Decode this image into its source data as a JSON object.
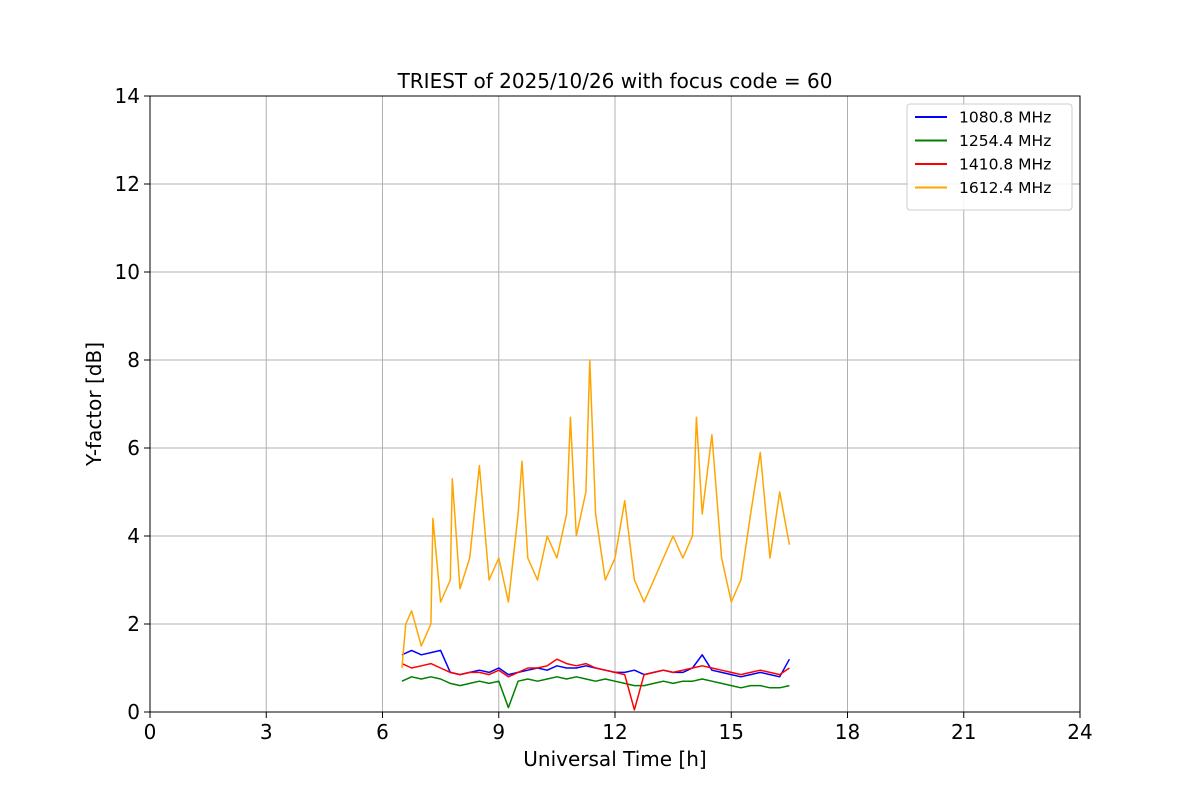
{
  "chart_data": {
    "type": "line",
    "title": "TRIEST of 2025/10/26 with focus code = 60",
    "xlabel": "Universal Time [h]",
    "ylabel": "Y-factor [dB]",
    "xlim": [
      0,
      24
    ],
    "ylim": [
      0,
      14
    ],
    "xticks": [
      0,
      3,
      6,
      9,
      12,
      15,
      18,
      21,
      24
    ],
    "yticks": [
      0,
      2,
      4,
      6,
      8,
      10,
      12,
      14
    ],
    "grid": true,
    "legend_position": "top-right",
    "series": [
      {
        "name": "1080.8 MHz",
        "color": "#0000ff",
        "x": [
          6.5,
          6.75,
          7.0,
          7.25,
          7.5,
          7.75,
          8.0,
          8.25,
          8.5,
          8.75,
          9.0,
          9.25,
          9.5,
          9.75,
          10.0,
          10.25,
          10.5,
          10.75,
          11.0,
          11.25,
          11.5,
          11.75,
          12.0,
          12.25,
          12.5,
          12.75,
          13.0,
          13.25,
          13.5,
          13.75,
          14.0,
          14.25,
          14.5,
          14.75,
          15.0,
          15.25,
          15.5,
          15.75,
          16.0,
          16.25,
          16.5
        ],
        "y": [
          1.3,
          1.4,
          1.3,
          1.35,
          1.4,
          0.9,
          0.85,
          0.9,
          0.95,
          0.9,
          1.0,
          0.85,
          0.9,
          0.95,
          1.0,
          0.95,
          1.05,
          1.0,
          1.0,
          1.05,
          1.0,
          0.95,
          0.9,
          0.9,
          0.95,
          0.85,
          0.9,
          0.95,
          0.9,
          0.9,
          1.0,
          1.3,
          0.95,
          0.9,
          0.85,
          0.8,
          0.85,
          0.9,
          0.85,
          0.8,
          1.2
        ]
      },
      {
        "name": "1254.4 MHz",
        "color": "#008000",
        "x": [
          6.5,
          6.75,
          7.0,
          7.25,
          7.5,
          7.75,
          8.0,
          8.25,
          8.5,
          8.75,
          9.0,
          9.25,
          9.5,
          9.75,
          10.0,
          10.25,
          10.5,
          10.75,
          11.0,
          11.25,
          11.5,
          11.75,
          12.0,
          12.25,
          12.5,
          12.75,
          13.0,
          13.25,
          13.5,
          13.75,
          14.0,
          14.25,
          14.5,
          14.75,
          15.0,
          15.25,
          15.5,
          15.75,
          16.0,
          16.25,
          16.5
        ],
        "y": [
          0.7,
          0.8,
          0.75,
          0.8,
          0.75,
          0.65,
          0.6,
          0.65,
          0.7,
          0.65,
          0.7,
          0.1,
          0.7,
          0.75,
          0.7,
          0.75,
          0.8,
          0.75,
          0.8,
          0.75,
          0.7,
          0.75,
          0.7,
          0.65,
          0.6,
          0.6,
          0.65,
          0.7,
          0.65,
          0.7,
          0.7,
          0.75,
          0.7,
          0.65,
          0.6,
          0.55,
          0.6,
          0.6,
          0.55,
          0.55,
          0.6
        ]
      },
      {
        "name": "1410.8 MHz",
        "color": "#ff0000",
        "x": [
          6.5,
          6.75,
          7.0,
          7.25,
          7.5,
          7.75,
          8.0,
          8.25,
          8.5,
          8.75,
          9.0,
          9.25,
          9.5,
          9.75,
          10.0,
          10.25,
          10.5,
          10.75,
          11.0,
          11.25,
          11.5,
          11.75,
          12.0,
          12.25,
          12.5,
          12.75,
          13.0,
          13.25,
          13.5,
          13.75,
          14.0,
          14.25,
          14.5,
          14.75,
          15.0,
          15.25,
          15.5,
          15.75,
          16.0,
          16.25,
          16.5
        ],
        "y": [
          1.1,
          1.0,
          1.05,
          1.1,
          1.0,
          0.9,
          0.85,
          0.9,
          0.9,
          0.85,
          0.95,
          0.8,
          0.9,
          1.0,
          1.0,
          1.05,
          1.2,
          1.1,
          1.05,
          1.1,
          1.0,
          0.95,
          0.9,
          0.85,
          0.05,
          0.85,
          0.9,
          0.95,
          0.9,
          0.95,
          1.0,
          1.05,
          1.0,
          0.95,
          0.9,
          0.85,
          0.9,
          0.95,
          0.9,
          0.85,
          1.0
        ]
      },
      {
        "name": "1612.4 MHz",
        "color": "#ffa500",
        "x": [
          6.5,
          6.6,
          6.75,
          7.0,
          7.25,
          7.3,
          7.5,
          7.75,
          7.8,
          8.0,
          8.25,
          8.5,
          8.75,
          9.0,
          9.25,
          9.5,
          9.6,
          9.75,
          10.0,
          10.25,
          10.5,
          10.75,
          10.85,
          11.0,
          11.25,
          11.35,
          11.5,
          11.75,
          12.0,
          12.25,
          12.5,
          12.75,
          13.0,
          13.25,
          13.5,
          13.75,
          14.0,
          14.1,
          14.25,
          14.5,
          14.75,
          15.0,
          15.25,
          15.5,
          15.75,
          16.0,
          16.25,
          16.5
        ],
        "y": [
          1.0,
          2.0,
          2.3,
          1.5,
          2.0,
          4.4,
          2.5,
          3.0,
          5.3,
          2.8,
          3.5,
          5.6,
          3.0,
          3.5,
          2.5,
          4.5,
          5.7,
          3.5,
          3.0,
          4.0,
          3.5,
          4.5,
          6.7,
          4.0,
          5.0,
          8.0,
          4.5,
          3.0,
          3.5,
          4.8,
          3.0,
          2.5,
          3.0,
          3.5,
          4.0,
          3.5,
          4.0,
          6.7,
          4.5,
          6.3,
          3.5,
          2.5,
          3.0,
          4.5,
          5.9,
          3.5,
          5.0,
          3.8
        ]
      }
    ]
  }
}
